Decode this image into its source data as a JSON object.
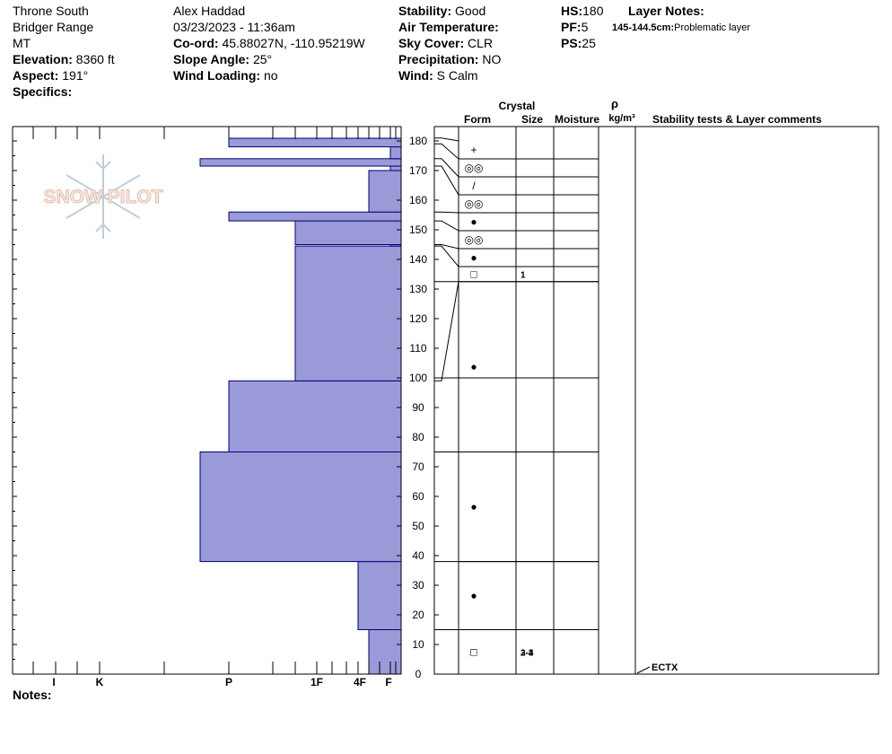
{
  "header": {
    "col1": [
      "Throne South",
      "Bridger Range",
      "MT"
    ],
    "elevation": {
      "label": "Elevation:",
      "value": "8360 ft"
    },
    "aspect": {
      "label": "Aspect:",
      "value": "191°"
    },
    "specifics": {
      "label": "Specifics:",
      "value": ""
    },
    "observer": "Alex Haddad",
    "datetime": "03/23/2023 - 11:36am",
    "coord": {
      "label": "Co-ord:",
      "value": "45.88027N, -110.95219W"
    },
    "slope": {
      "label": "Slope Angle:",
      "value": "25°"
    },
    "wind_loading": {
      "label": "Wind Loading:",
      "value": "no"
    },
    "stability": {
      "label": "Stability:",
      "value": "Good"
    },
    "air_temp": {
      "label": "Air Temperature:",
      "value": ""
    },
    "sky": {
      "label": "Sky Cover:",
      "value": "CLR"
    },
    "precip": {
      "label": "Precipitation:",
      "value": "NO"
    },
    "wind": {
      "label": "Wind:",
      "value": " S Calm"
    },
    "hs": {
      "label": "HS:",
      "value": "180"
    },
    "pf": {
      "label": "PF:",
      "value": "5"
    },
    "ps": {
      "label": "PS:",
      "value": "25"
    },
    "layer_notes": {
      "label": "Layer Notes:",
      "range": "145-144.5cm:",
      "text": "Problematic layer"
    }
  },
  "notes_label": "Notes:",
  "watermark": "SNOW PILOT",
  "colors": {
    "hardness_fill": "#9a9ad8",
    "hardness_stroke": "#00007a"
  },
  "chart_data": {
    "type": "hardness-profile",
    "ylim": [
      0,
      180
    ],
    "y_ticks": [
      0,
      10,
      20,
      30,
      40,
      50,
      60,
      70,
      80,
      90,
      100,
      110,
      120,
      130,
      140,
      150,
      160,
      170,
      180
    ],
    "hardness_scale": [
      "I",
      "K",
      "P",
      "1F",
      "4F",
      "F"
    ],
    "hardness_layers": [
      {
        "bottom": 0,
        "top": 15,
        "hardness": "4F"
      },
      {
        "bottom": 15,
        "top": 38,
        "hardness": "4F+"
      },
      {
        "bottom": 38,
        "top": 75,
        "hardness": "K+"
      },
      {
        "bottom": 75,
        "top": 99,
        "hardness": "P"
      },
      {
        "bottom": 99,
        "top": 144.5,
        "hardness": "1F"
      },
      {
        "bottom": 144.5,
        "top": 145,
        "hardness": "F"
      },
      {
        "bottom": 145,
        "top": 153,
        "hardness": "1F"
      },
      {
        "bottom": 153,
        "top": 156,
        "hardness": "P"
      },
      {
        "bottom": 156,
        "top": 170,
        "hardness": "4F"
      },
      {
        "bottom": 170,
        "top": 171.5,
        "hardness": "F"
      },
      {
        "bottom": 171.5,
        "top": 174,
        "hardness": "K+"
      },
      {
        "bottom": 174,
        "top": 178,
        "hardness": "F"
      },
      {
        "bottom": 178,
        "top": 181,
        "hardness": "P"
      }
    ],
    "column_headers": {
      "crystal": "Crystal",
      "form": "Form",
      "size": "Size",
      "moisture": "Moisture",
      "rho": "ρ",
      "density_unit": "kg/m³",
      "comments": "Stability tests & Layer comments"
    },
    "layer_table": [
      {
        "bottom": 179,
        "top": 181,
        "form": "+",
        "size": ""
      },
      {
        "bottom": 174,
        "top": 179,
        "form": "◎◎",
        "size": ""
      },
      {
        "bottom": 171.5,
        "top": 174,
        "form": "/",
        "size": ""
      },
      {
        "bottom": 156,
        "top": 171.5,
        "form": "◎◎",
        "size": ""
      },
      {
        "bottom": 153,
        "top": 156,
        "form": "●",
        "size": ""
      },
      {
        "bottom": 145,
        "top": 153,
        "form": "◎◎",
        "size": ""
      },
      {
        "bottom": 144.5,
        "top": 145,
        "form": "●",
        "size": ""
      },
      {
        "bottom": 99,
        "top": 144.5,
        "form": "□",
        "size": "1"
      },
      {
        "bottom": 75,
        "top": 99,
        "form": "●",
        "size": ""
      },
      {
        "bottom": 38,
        "top": 75,
        "form": "●",
        "size": ""
      },
      {
        "bottom": 15,
        "top": 38,
        "form": "●",
        "size": ""
      },
      {
        "bottom": 0,
        "top": 15,
        "form": "□",
        "size": "2-3"
      },
      {
        "bottom": -5,
        "top": 0,
        "form": "□",
        "size": "3-4"
      }
    ],
    "stability_tests": [
      {
        "height": 0,
        "label": "ECTX"
      }
    ]
  }
}
